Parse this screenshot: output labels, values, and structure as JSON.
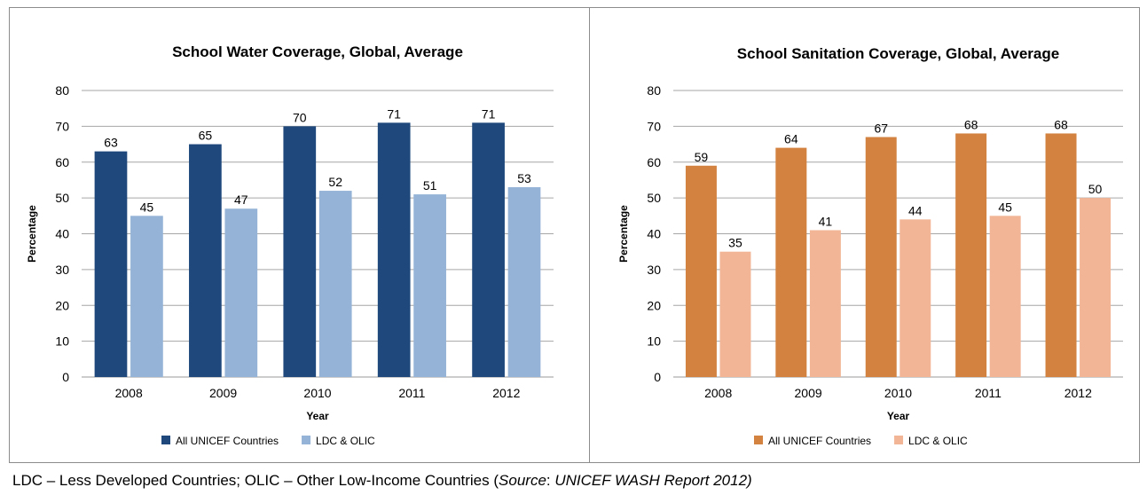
{
  "chart_data": [
    {
      "type": "bar",
      "title": "School Water Coverage, Global, Average",
      "xlabel": "Year",
      "ylabel": "Percentage",
      "ylim": [
        0,
        80
      ],
      "yticks": [
        0,
        10,
        20,
        30,
        40,
        50,
        60,
        70,
        80
      ],
      "grid": true,
      "legend": "bottom",
      "categories": [
        "2008",
        "2009",
        "2010",
        "2011",
        "2012"
      ],
      "series": [
        {
          "name": "All UNICEF Countries",
          "values": [
            63,
            65,
            70,
            71,
            71
          ],
          "color": "#1f497d"
        },
        {
          "name": "LDC & OLIC",
          "values": [
            45,
            47,
            52,
            51,
            53
          ],
          "color": "#95b3d7"
        }
      ]
    },
    {
      "type": "bar",
      "title": "School Sanitation Coverage, Global, Average",
      "xlabel": "Year",
      "ylabel": "Percentage",
      "ylim": [
        0,
        80
      ],
      "yticks": [
        0,
        10,
        20,
        30,
        40,
        50,
        60,
        70,
        80
      ],
      "grid": true,
      "legend": "bottom",
      "categories": [
        "2008",
        "2009",
        "2010",
        "2011",
        "2012"
      ],
      "series": [
        {
          "name": "All UNICEF Countries",
          "values": [
            59,
            64,
            67,
            68,
            68
          ],
          "color": "#d38240"
        },
        {
          "name": "LDC & OLIC",
          "values": [
            35,
            41,
            44,
            45,
            50
          ],
          "color": "#f2b596"
        }
      ]
    }
  ],
  "footnote": {
    "text": "LDC – Less Developed Countries; OLIC – Other Low-Income Countries (",
    "source_label": "Source",
    "source_sep": ": ",
    "source_value": "UNICEF WASH Report 2012)"
  }
}
